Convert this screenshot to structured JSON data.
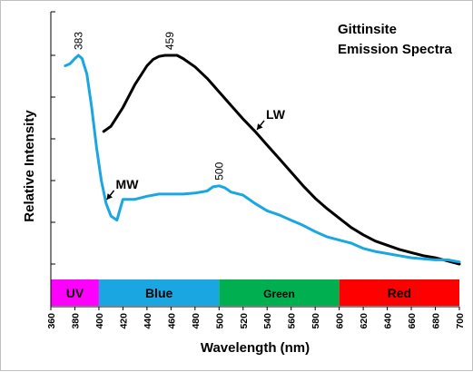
{
  "chart_data": {
    "type": "line",
    "title": "Gittinsite\nEmission Spectra",
    "title_lines": [
      "Gittinsite",
      "Emission Spectra"
    ],
    "xlabel": "Wavelength (nm)",
    "ylabel": "Relative Intensity",
    "xlim": [
      360,
      700
    ],
    "ylim": [
      0,
      100
    ],
    "x_ticks": [
      360,
      380,
      400,
      420,
      440,
      460,
      480,
      500,
      520,
      540,
      560,
      580,
      600,
      620,
      640,
      660,
      680,
      700
    ],
    "y_ticks_labeled": false,
    "grid": false,
    "legend": "none",
    "series": [
      {
        "name": "LW",
        "color": "#000000",
        "points": [
          [
            404,
            63.5
          ],
          [
            410,
            66
          ],
          [
            420,
            75
          ],
          [
            430,
            86
          ],
          [
            440,
            95
          ],
          [
            445,
            98
          ],
          [
            450,
            99.5
          ],
          [
            455,
            100
          ],
          [
            460,
            100
          ],
          [
            465,
            100
          ],
          [
            470,
            98.5
          ],
          [
            480,
            94.5
          ],
          [
            490,
            89
          ],
          [
            500,
            82.5
          ],
          [
            510,
            76
          ],
          [
            520,
            69.5
          ],
          [
            530,
            63.5
          ],
          [
            540,
            57
          ],
          [
            550,
            50.5
          ],
          [
            560,
            44
          ],
          [
            570,
            37.5
          ],
          [
            580,
            31.5
          ],
          [
            590,
            26.5
          ],
          [
            600,
            22
          ],
          [
            610,
            17.5
          ],
          [
            620,
            14
          ],
          [
            630,
            11
          ],
          [
            640,
            9
          ],
          [
            650,
            7
          ],
          [
            660,
            5.5
          ],
          [
            670,
            4
          ],
          [
            680,
            3
          ],
          [
            690,
            1.5
          ],
          [
            700,
            0
          ]
        ]
      },
      {
        "name": "MW",
        "color": "#1aa7e1",
        "points": [
          [
            372,
            95
          ],
          [
            376,
            96
          ],
          [
            380,
            98.5
          ],
          [
            383,
            100
          ],
          [
            386,
            98.5
          ],
          [
            390,
            91
          ],
          [
            394,
            75
          ],
          [
            398,
            56
          ],
          [
            402,
            40
          ],
          [
            406,
            29
          ],
          [
            410,
            23
          ],
          [
            415,
            21
          ],
          [
            420,
            31
          ],
          [
            430,
            31
          ],
          [
            440,
            32.5
          ],
          [
            450,
            33.5
          ],
          [
            460,
            33.5
          ],
          [
            470,
            33.5
          ],
          [
            480,
            34
          ],
          [
            490,
            35
          ],
          [
            495,
            37
          ],
          [
            500,
            37.5
          ],
          [
            505,
            36.5
          ],
          [
            510,
            34.5
          ],
          [
            520,
            33
          ],
          [
            530,
            29
          ],
          [
            540,
            25.5
          ],
          [
            550,
            23.5
          ],
          [
            560,
            21
          ],
          [
            570,
            18.5
          ],
          [
            580,
            15.5
          ],
          [
            590,
            13
          ],
          [
            600,
            11.5
          ],
          [
            610,
            10
          ],
          [
            620,
            7.5
          ],
          [
            630,
            6
          ],
          [
            640,
            5
          ],
          [
            650,
            4
          ],
          [
            660,
            3
          ],
          [
            670,
            2.5
          ],
          [
            680,
            2
          ],
          [
            690,
            2
          ],
          [
            700,
            1
          ]
        ]
      }
    ],
    "peak_labels": [
      {
        "text": "383",
        "x": 383,
        "y": 100
      },
      {
        "text": "459",
        "x": 459,
        "y": 100
      },
      {
        "text": "500",
        "x": 500,
        "y": 37.5
      }
    ],
    "curve_labels": [
      {
        "text": "LW",
        "series": "LW",
        "x": 530,
        "y": 63.5,
        "placement": "upper-right"
      },
      {
        "text": "MW",
        "series": "MW",
        "x": 405,
        "y": 30,
        "placement": "upper-right"
      }
    ],
    "bands": [
      {
        "label": "UV",
        "from": 360,
        "to": 400,
        "color": "#ff00ff"
      },
      {
        "label": "Blue",
        "from": 400,
        "to": 500,
        "color": "#1aa7e1"
      },
      {
        "label": "Green",
        "from": 500,
        "to": 600,
        "color": "#00b050"
      },
      {
        "label": "Red",
        "from": 600,
        "to": 700,
        "color": "#ff0000"
      }
    ]
  }
}
